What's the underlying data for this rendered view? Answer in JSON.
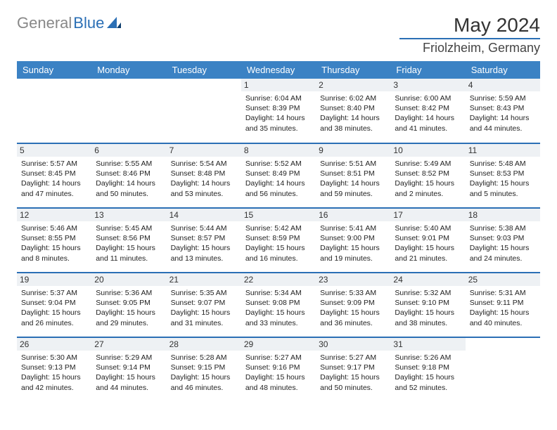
{
  "brand": {
    "part1": "General",
    "part2": "Blue"
  },
  "title": "May 2024",
  "location": "Friolzheim, Germany",
  "colors": {
    "accent": "#2b6fb5",
    "header_bg": "#3b82c4",
    "daynum_bg": "#eef1f4"
  },
  "weekdays": [
    "Sunday",
    "Monday",
    "Tuesday",
    "Wednesday",
    "Thursday",
    "Friday",
    "Saturday"
  ],
  "weeks": [
    [
      null,
      null,
      null,
      {
        "n": "1",
        "sr": "6:04 AM",
        "ss": "8:39 PM",
        "dl": "14 hours and 35 minutes."
      },
      {
        "n": "2",
        "sr": "6:02 AM",
        "ss": "8:40 PM",
        "dl": "14 hours and 38 minutes."
      },
      {
        "n": "3",
        "sr": "6:00 AM",
        "ss": "8:42 PM",
        "dl": "14 hours and 41 minutes."
      },
      {
        "n": "4",
        "sr": "5:59 AM",
        "ss": "8:43 PM",
        "dl": "14 hours and 44 minutes."
      }
    ],
    [
      {
        "n": "5",
        "sr": "5:57 AM",
        "ss": "8:45 PM",
        "dl": "14 hours and 47 minutes."
      },
      {
        "n": "6",
        "sr": "5:55 AM",
        "ss": "8:46 PM",
        "dl": "14 hours and 50 minutes."
      },
      {
        "n": "7",
        "sr": "5:54 AM",
        "ss": "8:48 PM",
        "dl": "14 hours and 53 minutes."
      },
      {
        "n": "8",
        "sr": "5:52 AM",
        "ss": "8:49 PM",
        "dl": "14 hours and 56 minutes."
      },
      {
        "n": "9",
        "sr": "5:51 AM",
        "ss": "8:51 PM",
        "dl": "14 hours and 59 minutes."
      },
      {
        "n": "10",
        "sr": "5:49 AM",
        "ss": "8:52 PM",
        "dl": "15 hours and 2 minutes."
      },
      {
        "n": "11",
        "sr": "5:48 AM",
        "ss": "8:53 PM",
        "dl": "15 hours and 5 minutes."
      }
    ],
    [
      {
        "n": "12",
        "sr": "5:46 AM",
        "ss": "8:55 PM",
        "dl": "15 hours and 8 minutes."
      },
      {
        "n": "13",
        "sr": "5:45 AM",
        "ss": "8:56 PM",
        "dl": "15 hours and 11 minutes."
      },
      {
        "n": "14",
        "sr": "5:44 AM",
        "ss": "8:57 PM",
        "dl": "15 hours and 13 minutes."
      },
      {
        "n": "15",
        "sr": "5:42 AM",
        "ss": "8:59 PM",
        "dl": "15 hours and 16 minutes."
      },
      {
        "n": "16",
        "sr": "5:41 AM",
        "ss": "9:00 PM",
        "dl": "15 hours and 19 minutes."
      },
      {
        "n": "17",
        "sr": "5:40 AM",
        "ss": "9:01 PM",
        "dl": "15 hours and 21 minutes."
      },
      {
        "n": "18",
        "sr": "5:38 AM",
        "ss": "9:03 PM",
        "dl": "15 hours and 24 minutes."
      }
    ],
    [
      {
        "n": "19",
        "sr": "5:37 AM",
        "ss": "9:04 PM",
        "dl": "15 hours and 26 minutes."
      },
      {
        "n": "20",
        "sr": "5:36 AM",
        "ss": "9:05 PM",
        "dl": "15 hours and 29 minutes."
      },
      {
        "n": "21",
        "sr": "5:35 AM",
        "ss": "9:07 PM",
        "dl": "15 hours and 31 minutes."
      },
      {
        "n": "22",
        "sr": "5:34 AM",
        "ss": "9:08 PM",
        "dl": "15 hours and 33 minutes."
      },
      {
        "n": "23",
        "sr": "5:33 AM",
        "ss": "9:09 PM",
        "dl": "15 hours and 36 minutes."
      },
      {
        "n": "24",
        "sr": "5:32 AM",
        "ss": "9:10 PM",
        "dl": "15 hours and 38 minutes."
      },
      {
        "n": "25",
        "sr": "5:31 AM",
        "ss": "9:11 PM",
        "dl": "15 hours and 40 minutes."
      }
    ],
    [
      {
        "n": "26",
        "sr": "5:30 AM",
        "ss": "9:13 PM",
        "dl": "15 hours and 42 minutes."
      },
      {
        "n": "27",
        "sr": "5:29 AM",
        "ss": "9:14 PM",
        "dl": "15 hours and 44 minutes."
      },
      {
        "n": "28",
        "sr": "5:28 AM",
        "ss": "9:15 PM",
        "dl": "15 hours and 46 minutes."
      },
      {
        "n": "29",
        "sr": "5:27 AM",
        "ss": "9:16 PM",
        "dl": "15 hours and 48 minutes."
      },
      {
        "n": "30",
        "sr": "5:27 AM",
        "ss": "9:17 PM",
        "dl": "15 hours and 50 minutes."
      },
      {
        "n": "31",
        "sr": "5:26 AM",
        "ss": "9:18 PM",
        "dl": "15 hours and 52 minutes."
      },
      null
    ]
  ]
}
